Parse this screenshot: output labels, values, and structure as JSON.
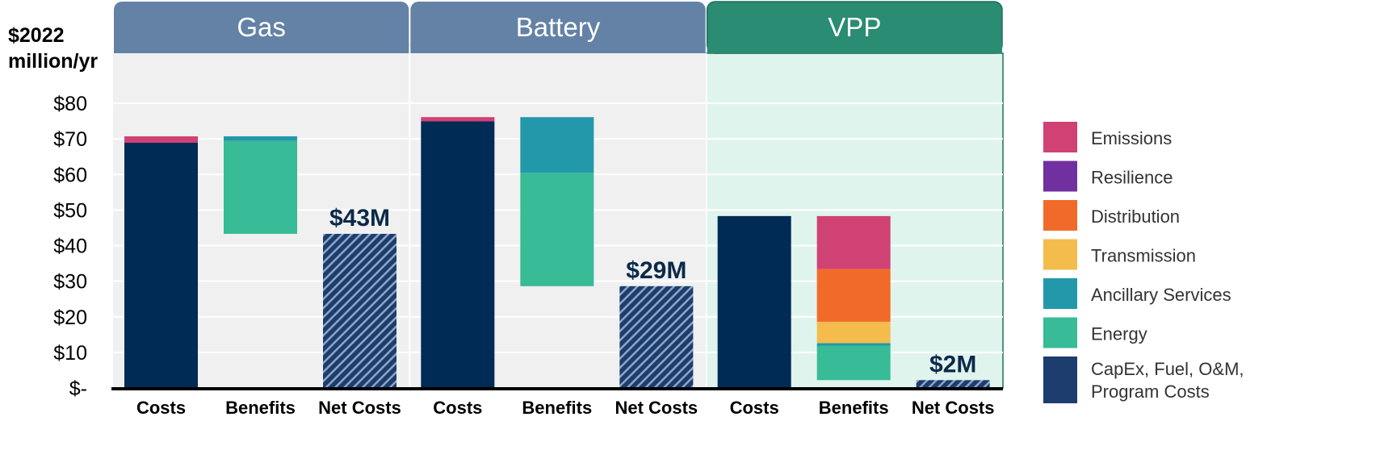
{
  "chart_data": {
    "type": "bar",
    "ylabel_lines": [
      "$2022",
      "million/yr"
    ],
    "ylim": [
      0,
      80
    ],
    "y_ticks": [
      {
        "value": 80,
        "label": "$80"
      },
      {
        "value": 70,
        "label": "$70"
      },
      {
        "value": 60,
        "label": "$60"
      },
      {
        "value": 50,
        "label": "$50"
      },
      {
        "value": 40,
        "label": "$40"
      },
      {
        "value": 30,
        "label": "$30"
      },
      {
        "value": 20,
        "label": "$20"
      },
      {
        "value": 10,
        "label": "$10"
      },
      {
        "value": 0,
        "label": "$-"
      }
    ],
    "grid": true,
    "legend_position": "right",
    "legend": [
      {
        "name": "Emissions",
        "color": "#d04174"
      },
      {
        "name": "Resilience",
        "color": "#7030a0"
      },
      {
        "name": "Distribution",
        "color": "#f26a2a"
      },
      {
        "name": "Transmission",
        "color": "#f3bc4c"
      },
      {
        "name": "Ancillary Services",
        "color": "#2398ab"
      },
      {
        "name": "Energy",
        "color": "#38bb97"
      },
      {
        "name": "CapEx, Fuel, O&M, Program Costs",
        "color": "#1c3d6e"
      }
    ],
    "panels": [
      {
        "title": "Gas",
        "header_color": "#6482a6",
        "bg_color": "#f0f0f0",
        "border_color": "",
        "bars": [
          {
            "category": "Costs",
            "kind": "stack",
            "segments": [
              {
                "series": "CapEx, Fuel, O&M, Program Costs",
                "from": 0,
                "to": 68.9,
                "color": "#002b55"
              },
              {
                "series": "Emissions",
                "from": 68.9,
                "to": 70.7,
                "color": "#d04174"
              }
            ]
          },
          {
            "category": "Benefits",
            "kind": "stack",
            "segments": [
              {
                "series": "Energy",
                "from": 43.3,
                "to": 69.4,
                "color": "#38bb97"
              },
              {
                "series": "Ancillary Services",
                "from": 69.4,
                "to": 70.7,
                "color": "#2398ab"
              }
            ]
          },
          {
            "category": "Net Costs",
            "kind": "net",
            "value": 43.3,
            "label": "$43M"
          }
        ]
      },
      {
        "title": "Battery",
        "header_color": "#6482a6",
        "bg_color": "#f0f0f0",
        "border_color": "",
        "bars": [
          {
            "category": "Costs",
            "kind": "stack",
            "segments": [
              {
                "series": "CapEx, Fuel, O&M, Program Costs",
                "from": 0,
                "to": 74.9,
                "color": "#002b55"
              },
              {
                "series": "Emissions",
                "from": 74.9,
                "to": 76.1,
                "color": "#d04174"
              }
            ]
          },
          {
            "category": "Benefits",
            "kind": "stack",
            "segments": [
              {
                "series": "Energy",
                "from": 28.6,
                "to": 60.5,
                "color": "#38bb97"
              },
              {
                "series": "Ancillary Services",
                "from": 60.5,
                "to": 76.1,
                "color": "#2398ab"
              }
            ]
          },
          {
            "category": "Net Costs",
            "kind": "net",
            "value": 28.6,
            "label": "$29M"
          }
        ]
      },
      {
        "title": "VPP",
        "header_color": "#2a8c72",
        "bg_color": "#e0f4ee",
        "border_color": "#1f6e58",
        "bars": [
          {
            "category": "Costs",
            "kind": "stack",
            "segments": [
              {
                "series": "CapEx, Fuel, O&M, Program Costs",
                "from": 0,
                "to": 48.3,
                "color": "#002b55"
              }
            ]
          },
          {
            "category": "Benefits",
            "kind": "stack",
            "segments": [
              {
                "series": "Energy",
                "from": 2.2,
                "to": 11.9,
                "color": "#38bb97"
              },
              {
                "series": "Ancillary Services",
                "from": 11.9,
                "to": 12.6,
                "color": "#2398ab"
              },
              {
                "series": "Transmission",
                "from": 12.6,
                "to": 18.6,
                "color": "#f3bc4c"
              },
              {
                "series": "Distribution",
                "from": 18.6,
                "to": 33.4,
                "color": "#f26a2a"
              },
              {
                "series": "Emissions",
                "from": 33.4,
                "to": 48.3,
                "color": "#d04174"
              }
            ]
          },
          {
            "category": "Net Costs",
            "kind": "net",
            "value": 2.2,
            "label": "$2M"
          }
        ]
      }
    ]
  }
}
